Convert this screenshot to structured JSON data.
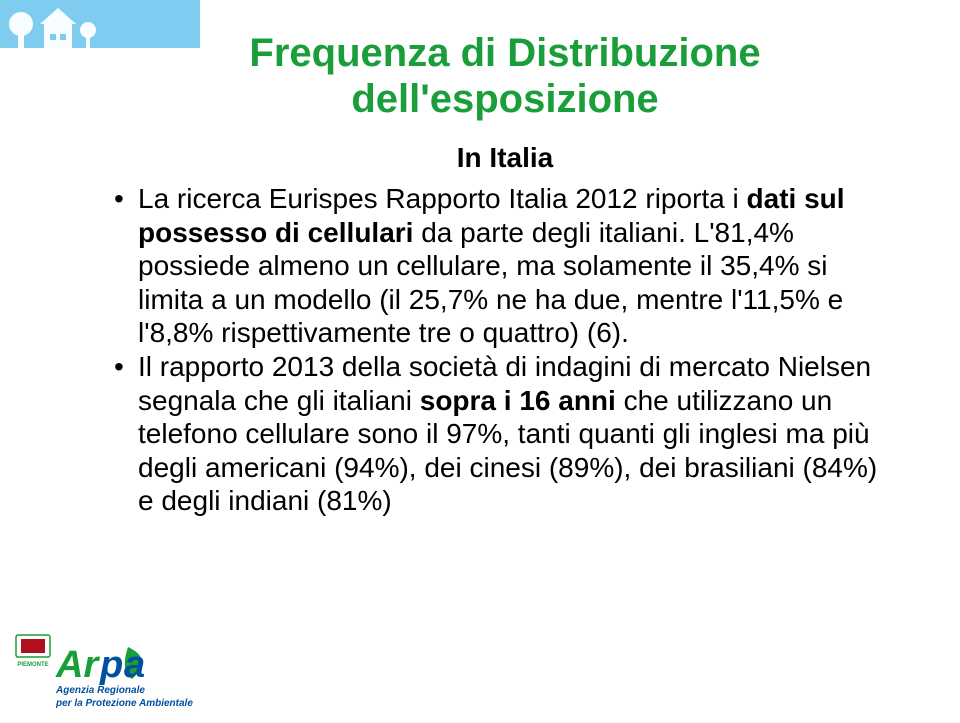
{
  "title": {
    "line1": "Frequenza di Distribuzione",
    "line2": "dell'esposizione",
    "color": "#1a9e3a",
    "fontsize": 40
  },
  "subtitle": {
    "text": "In Italia",
    "color": "#000000",
    "fontsize": 28
  },
  "body": {
    "fontsize": 28,
    "color": "#000000",
    "bullets": [
      {
        "segments": [
          {
            "text": "La ricerca Eurispes Rapporto Italia 2012  riporta i ",
            "bold": false
          },
          {
            "text": "dati sul possesso di cellulari",
            "bold": true
          },
          {
            "text": " da parte degli italiani. L'81,4% possiede almeno un cellulare, ma solamente il 35,4% si",
            "bold": false
          }
        ]
      }
    ],
    "continuation": "limita a un modello (il 25,7% ne ha due, mentre l'11,5% e l'8,8% rispettivamente tre o quattro) (6).",
    "bullets2": [
      {
        "segments": [
          {
            "text": "Il rapporto 2013 della società di indagini di mercato Nielsen segnala  che gli italiani ",
            "bold": false
          },
          {
            "text": "sopra i 16 anni",
            "bold": true
          },
          {
            "text": " che utilizzano un telefono cellulare sono il 97%, tanti quanti gli inglesi ma più degli americani (94%), dei cinesi (89%), dei brasiliani (84%) e degli indiani (81%)",
            "bold": false
          }
        ]
      }
    ]
  },
  "decoration": {
    "band_color": "#7fccf1",
    "tree_color": "#ffffff",
    "house_color": "#ffffff"
  },
  "logo": {
    "badge_bg": "#ffffff",
    "badge_border": "#1a9e3a",
    "crest_bg": "#b01020",
    "brand_color_a": "#1a9e3a",
    "brand_color_r": "#0050a0",
    "brand_text_a": "Ar",
    "brand_text_p": "p",
    "brand_text_a2": "a",
    "region_text": "PIEMONTE",
    "tagline1": "Agenzia Regionale",
    "tagline2": "per la Protezione Ambientale"
  }
}
